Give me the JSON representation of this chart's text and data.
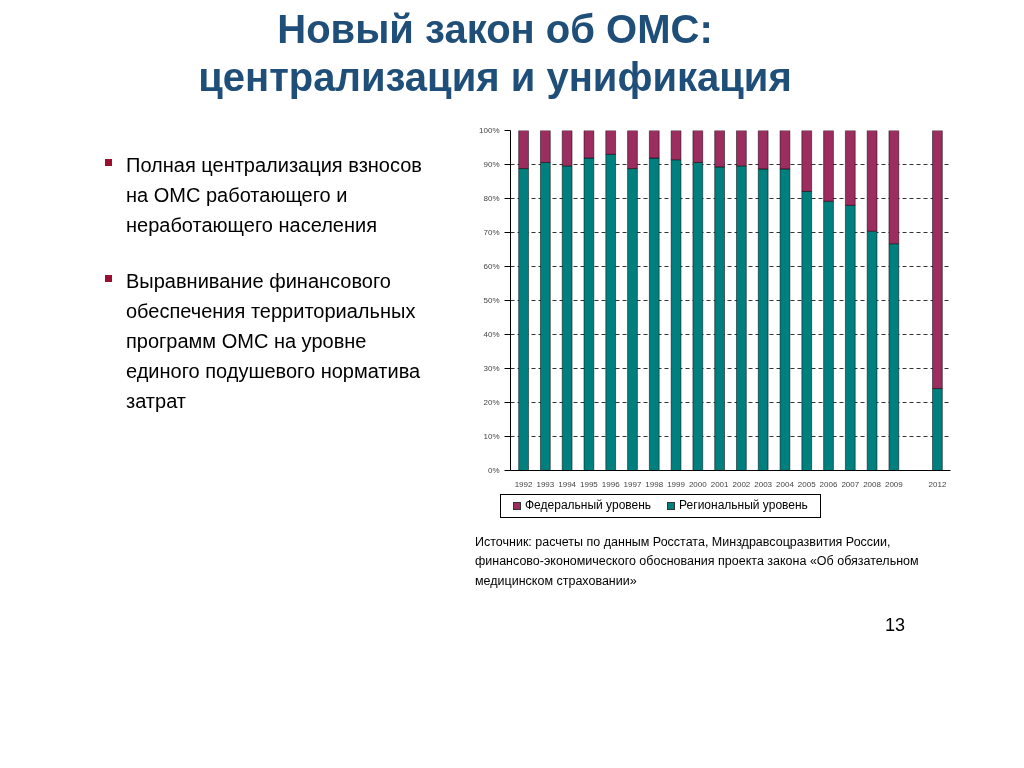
{
  "chart_data": {
    "type": "bar",
    "title": "Новый закон об ОМС: централизация и унификация",
    "categories": [
      "1992",
      "1993",
      "1994",
      "1995",
      "1996",
      "1997",
      "1998",
      "1999",
      "2000",
      "2001",
      "2002",
      "2003",
      "2004",
      "2005",
      "2006",
      "2007",
      "2008",
      "2009",
      null,
      "2012"
    ],
    "series": [
      {
        "name": "Региональный уровень",
        "color": "#007f7f",
        "values": [
          88.8,
          90.6,
          89.6,
          91.9,
          93.0,
          88.8,
          91.9,
          91.4,
          90.6,
          89.3,
          89.6,
          88.7,
          88.7,
          82.1,
          79.2,
          78.0,
          70.4,
          66.7,
          null,
          24.1
        ]
      },
      {
        "name": "Федеральный уровень",
        "color": "#9b2d5f",
        "values": [
          11.2,
          9.4,
          10.4,
          8.1,
          7.0,
          11.2,
          8.1,
          8.6,
          9.4,
          10.7,
          10.4,
          11.3,
          11.3,
          17.9,
          20.8,
          22.0,
          29.6,
          33.3,
          null,
          75.9
        ]
      }
    ],
    "stacked": true,
    "ylim": [
      0,
      100
    ],
    "yticks": [
      {
        "value": 0,
        "label": "0%"
      },
      {
        "value": 10,
        "label": "10%"
      },
      {
        "value": 20,
        "label": "20%"
      },
      {
        "value": 30,
        "label": "30%"
      },
      {
        "value": 40,
        "label": "40%"
      },
      {
        "value": 50,
        "label": "50%"
      },
      {
        "value": 60,
        "label": "60%"
      },
      {
        "value": 70,
        "label": "70%"
      },
      {
        "value": 80,
        "label": "80%"
      },
      {
        "value": 90,
        "label": "90%"
      },
      {
        "value": 100,
        "label": "100%"
      }
    ],
    "grid": "y",
    "legend": "bottom",
    "annotations": [
      "Полная централизация взносов на ОМС работающего и неработающего населения",
      "Выравнивание финансового обеспечения территориальных программ ОМС на уровне единого подушевого норматива затрат",
      "Источник: расчеты по данным Росстата, Минздравсоцразвития России, финансово-экономического обоснования проекта закона «Об обязательном медицинском страховании»",
      "13"
    ]
  }
}
